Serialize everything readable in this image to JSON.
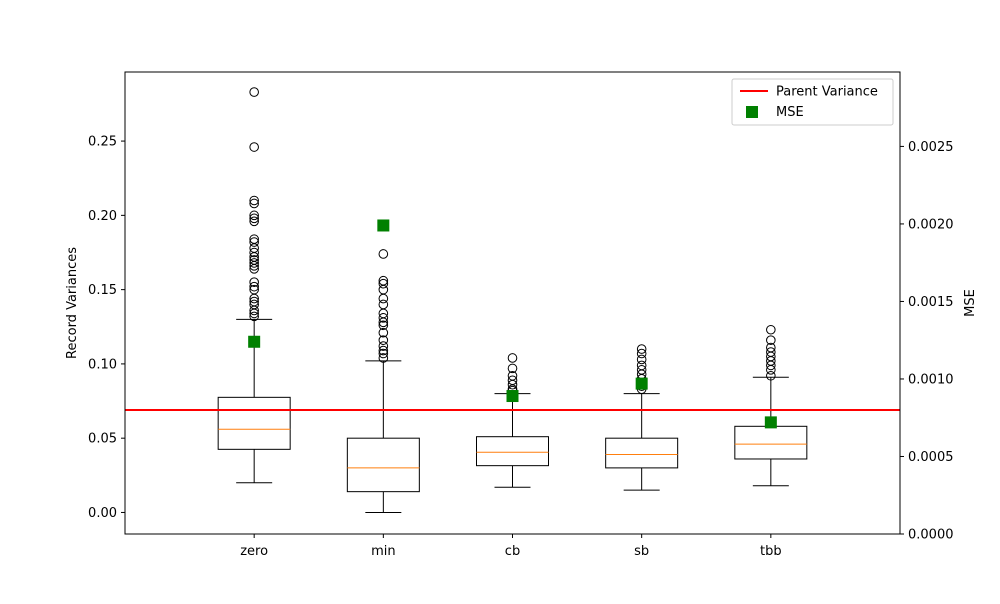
{
  "chart_data": {
    "type": "box",
    "categories": [
      "zero",
      "min",
      "cb",
      "sb",
      "tbb"
    ],
    "ylabel": "Record Variances",
    "y2label": "MSE",
    "ylim": [
      -0.0145,
      0.2965
    ],
    "y2lim": [
      0,
      0.00298
    ],
    "yticks": [
      0.0,
      0.05,
      0.1,
      0.15,
      0.2,
      0.25
    ],
    "ytick_labels": [
      "0.00",
      "0.05",
      "0.10",
      "0.15",
      "0.20",
      "0.25"
    ],
    "y2ticks": [
      0,
      0.0005,
      0.001,
      0.0015,
      0.002,
      0.0025
    ],
    "y2tick_labels": [
      "0.0000",
      "0.0005",
      "0.0010",
      "0.0015",
      "0.0020",
      "0.0025"
    ],
    "boxes": [
      {
        "q1": 0.0425,
        "median": 0.056,
        "q3": 0.0775,
        "whisker_low": 0.02,
        "whisker_high": 0.13,
        "outliers": [
          0.283,
          0.246,
          0.21,
          0.208,
          0.2,
          0.198,
          0.196,
          0.184,
          0.182,
          0.178,
          0.175,
          0.172,
          0.17,
          0.168,
          0.166,
          0.164,
          0.155,
          0.152,
          0.15,
          0.144,
          0.142,
          0.14,
          0.136,
          0.134,
          0.132
        ]
      },
      {
        "q1": 0.014,
        "median": 0.03,
        "q3": 0.05,
        "whisker_low": 0.0,
        "whisker_high": 0.102,
        "outliers": [
          0.174,
          0.156,
          0.154,
          0.15,
          0.144,
          0.14,
          0.134,
          0.131,
          0.128,
          0.126,
          0.121,
          0.116,
          0.112,
          0.109,
          0.107,
          0.104
        ]
      },
      {
        "q1": 0.0315,
        "median": 0.0405,
        "q3": 0.051,
        "whisker_low": 0.017,
        "whisker_high": 0.08,
        "outliers": [
          0.104,
          0.097,
          0.092,
          0.089,
          0.086,
          0.083,
          0.082
        ]
      },
      {
        "q1": 0.03,
        "median": 0.039,
        "q3": 0.05,
        "whisker_low": 0.015,
        "whisker_high": 0.08,
        "outliers": [
          0.11,
          0.107,
          0.103,
          0.099,
          0.096,
          0.093,
          0.09,
          0.087,
          0.085,
          0.083
        ]
      },
      {
        "q1": 0.036,
        "median": 0.046,
        "q3": 0.058,
        "whisker_low": 0.018,
        "whisker_high": 0.091,
        "outliers": [
          0.123,
          0.116,
          0.111,
          0.108,
          0.105,
          0.102,
          0.099,
          0.096,
          0.092
        ]
      }
    ],
    "parent_variance": 0.069,
    "mse": [
      0.00124,
      0.00199,
      0.00089,
      0.00097,
      0.00072
    ],
    "legend": {
      "position": "upper-right",
      "entries": [
        "Parent Variance",
        "MSE"
      ]
    },
    "colors": {
      "box": "#000000",
      "median": "#ff7f0e",
      "parent_variance": "#ff0000",
      "mse": "#008000"
    },
    "grid": false
  }
}
